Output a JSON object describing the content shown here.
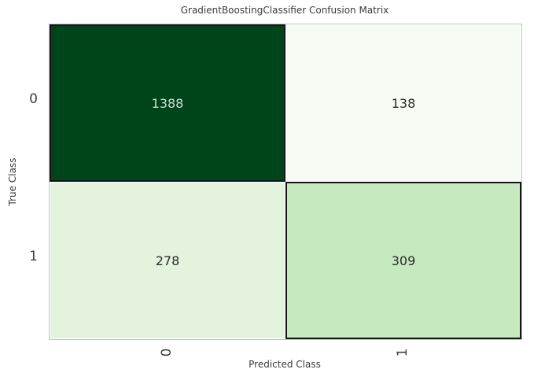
{
  "chart_data": {
    "type": "heatmap",
    "title": "GradientBoostingClassifier Confusion Matrix",
    "xlabel": "Predicted Class",
    "ylabel": "True Class",
    "x_tick_labels": [
      "0",
      "1"
    ],
    "y_tick_labels": [
      "0",
      "1"
    ],
    "matrix": [
      [
        1388,
        138
      ],
      [
        278,
        309
      ]
    ],
    "colormap": "Greens",
    "legend_position": "none",
    "grid": false,
    "cells": [
      {
        "true_class": "0",
        "predicted_class": "0",
        "value": "1388",
        "bg": "#00441b",
        "text_color": "#d2d8d2",
        "diagonal": true
      },
      {
        "true_class": "0",
        "predicted_class": "1",
        "value": "138",
        "bg": "#f6fbf4",
        "text_color": "#2b2b2b",
        "diagonal": false
      },
      {
        "true_class": "1",
        "predicted_class": "0",
        "value": "278",
        "bg": "#e4f3de",
        "text_color": "#2b2b2b",
        "diagonal": false
      },
      {
        "true_class": "1",
        "predicted_class": "1",
        "value": "309",
        "bg": "#c7e9c0",
        "text_color": "#2b2b2b",
        "diagonal": true
      }
    ]
  },
  "colors": {
    "figure_background": "#ffffff",
    "spine": "#c0c3c6",
    "diagonal_cell_edge": "#151515",
    "offdiagonal_cell_edge": "#ffffff",
    "title_text": "#3a3a3a",
    "axis_label_text": "#3a3a3a",
    "tick_text": "#3d3d3d"
  }
}
